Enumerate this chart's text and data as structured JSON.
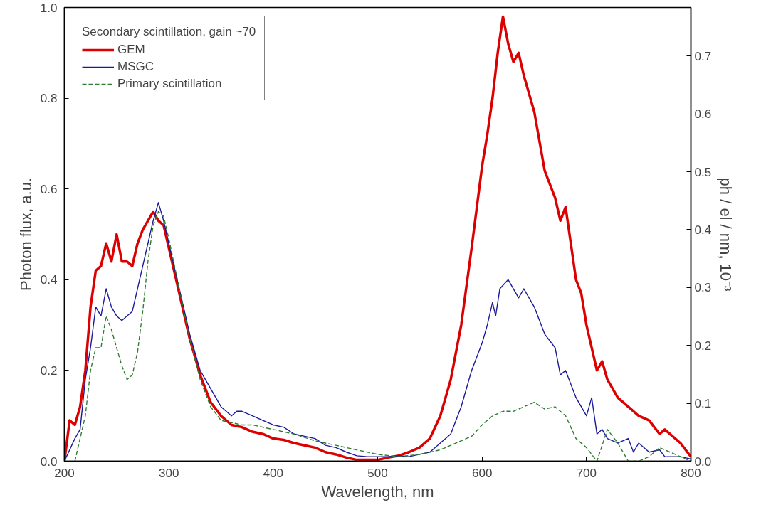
{
  "chart_data": {
    "type": "line",
    "xlabel": "Wavelength, nm",
    "ylabel": "Photon flux, a.u.",
    "y2label": "ph / el / nm, 10⁻³",
    "legend_title": "Secondary scintillation, gain ~70",
    "legend": "top left",
    "grid": false,
    "xlim": [
      200,
      800
    ],
    "xticks": [
      200,
      300,
      400,
      500,
      600,
      700,
      800
    ],
    "ylim": [
      0,
      1.0
    ],
    "yticks": [
      {
        "value": 0,
        "label": "0.0"
      },
      0.2,
      0.4,
      0.6,
      0.8,
      {
        "value": 1.0,
        "label": "1.0"
      }
    ],
    "y2lim": [
      0,
      0.784
    ],
    "y2ticks": [
      {
        "value": 0,
        "label": "0.0"
      },
      0.1,
      0.2,
      0.3,
      0.4,
      0.5,
      0.6,
      0.7
    ],
    "series": [
      {
        "name": "GEM",
        "color": "#dd0000",
        "line_style": "solid",
        "x": [
          200,
          205,
          210,
          215,
          220,
          225,
          230,
          235,
          240,
          245,
          250,
          255,
          260,
          265,
          270,
          275,
          280,
          285,
          290,
          295,
          300,
          310,
          320,
          330,
          340,
          350,
          360,
          370,
          380,
          390,
          400,
          410,
          420,
          430,
          440,
          450,
          460,
          470,
          480,
          490,
          500,
          510,
          520,
          530,
          540,
          550,
          560,
          570,
          580,
          590,
          600,
          605,
          610,
          615,
          620,
          625,
          630,
          635,
          640,
          650,
          660,
          670,
          675,
          680,
          690,
          695,
          700,
          710,
          715,
          720,
          730,
          740,
          750,
          760,
          770,
          775,
          790,
          800
        ],
        "values": [
          0.0,
          0.09,
          0.08,
          0.12,
          0.2,
          0.34,
          0.42,
          0.43,
          0.48,
          0.44,
          0.5,
          0.44,
          0.44,
          0.43,
          0.48,
          0.51,
          0.53,
          0.55,
          0.53,
          0.52,
          0.47,
          0.37,
          0.27,
          0.19,
          0.13,
          0.1,
          0.08,
          0.075,
          0.065,
          0.06,
          0.05,
          0.047,
          0.04,
          0.035,
          0.03,
          0.02,
          0.015,
          0.008,
          0.003,
          0.003,
          0.003,
          0.008,
          0.012,
          0.02,
          0.03,
          0.05,
          0.1,
          0.18,
          0.3,
          0.47,
          0.65,
          0.72,
          0.8,
          0.9,
          0.98,
          0.92,
          0.88,
          0.9,
          0.85,
          0.77,
          0.64,
          0.58,
          0.53,
          0.56,
          0.4,
          0.37,
          0.3,
          0.2,
          0.22,
          0.18,
          0.14,
          0.12,
          0.1,
          0.09,
          0.06,
          0.07,
          0.04,
          0.01
        ]
      },
      {
        "name": "MSGC",
        "color": "#1a1a9a",
        "line_style": "solid",
        "x": [
          200,
          210,
          215,
          220,
          225,
          230,
          235,
          240,
          245,
          250,
          255,
          260,
          265,
          270,
          275,
          280,
          285,
          290,
          295,
          300,
          310,
          320,
          330,
          340,
          350,
          360,
          365,
          370,
          380,
          390,
          400,
          410,
          420,
          430,
          440,
          450,
          460,
          470,
          480,
          490,
          500,
          510,
          520,
          530,
          540,
          550,
          560,
          570,
          580,
          590,
          600,
          605,
          610,
          613,
          617,
          625,
          635,
          640,
          650,
          660,
          670,
          675,
          680,
          690,
          695,
          700,
          705,
          710,
          715,
          720,
          730,
          740,
          745,
          750,
          760,
          770,
          775,
          790,
          800
        ],
        "values": [
          0.0,
          0.05,
          0.07,
          0.18,
          0.25,
          0.34,
          0.32,
          0.38,
          0.34,
          0.32,
          0.31,
          0.32,
          0.33,
          0.38,
          0.43,
          0.48,
          0.53,
          0.57,
          0.53,
          0.48,
          0.38,
          0.28,
          0.2,
          0.16,
          0.12,
          0.1,
          0.11,
          0.11,
          0.1,
          0.09,
          0.08,
          0.075,
          0.06,
          0.055,
          0.05,
          0.035,
          0.03,
          0.02,
          0.012,
          0.01,
          0.01,
          0.01,
          0.012,
          0.01,
          0.015,
          0.02,
          0.04,
          0.06,
          0.12,
          0.2,
          0.26,
          0.3,
          0.35,
          0.32,
          0.38,
          0.4,
          0.36,
          0.38,
          0.34,
          0.28,
          0.25,
          0.19,
          0.2,
          0.14,
          0.12,
          0.1,
          0.14,
          0.06,
          0.07,
          0.05,
          0.04,
          0.05,
          0.02,
          0.04,
          0.02,
          0.025,
          0.01,
          0.01,
          0.005
        ]
      },
      {
        "name": "Primary scintillation",
        "color": "#2e7d32",
        "line_style": "dashed",
        "x": [
          210,
          220,
          225,
          230,
          235,
          240,
          245,
          250,
          255,
          260,
          265,
          270,
          275,
          280,
          285,
          290,
          295,
          300,
          310,
          320,
          330,
          340,
          350,
          360,
          370,
          380,
          390,
          400,
          420,
          440,
          460,
          480,
          500,
          520,
          540,
          550,
          560,
          570,
          580,
          590,
          600,
          610,
          620,
          630,
          640,
          650,
          660,
          670,
          680,
          690,
          700,
          710,
          720,
          730,
          740,
          750,
          760,
          770,
          780,
          790,
          800
        ],
        "values": [
          0.0,
          0.1,
          0.2,
          0.25,
          0.25,
          0.32,
          0.29,
          0.25,
          0.21,
          0.18,
          0.19,
          0.24,
          0.33,
          0.44,
          0.52,
          0.55,
          0.54,
          0.49,
          0.38,
          0.27,
          0.18,
          0.12,
          0.09,
          0.085,
          0.08,
          0.08,
          0.075,
          0.07,
          0.06,
          0.045,
          0.035,
          0.025,
          0.015,
          0.01,
          0.015,
          0.02,
          0.025,
          0.035,
          0.045,
          0.055,
          0.08,
          0.1,
          0.11,
          0.11,
          0.12,
          0.13,
          0.115,
          0.12,
          0.1,
          0.05,
          0.03,
          0.0,
          0.07,
          0.04,
          0.0,
          0.0,
          0.01,
          0.03,
          0.02,
          0.01,
          0.0
        ]
      }
    ]
  }
}
